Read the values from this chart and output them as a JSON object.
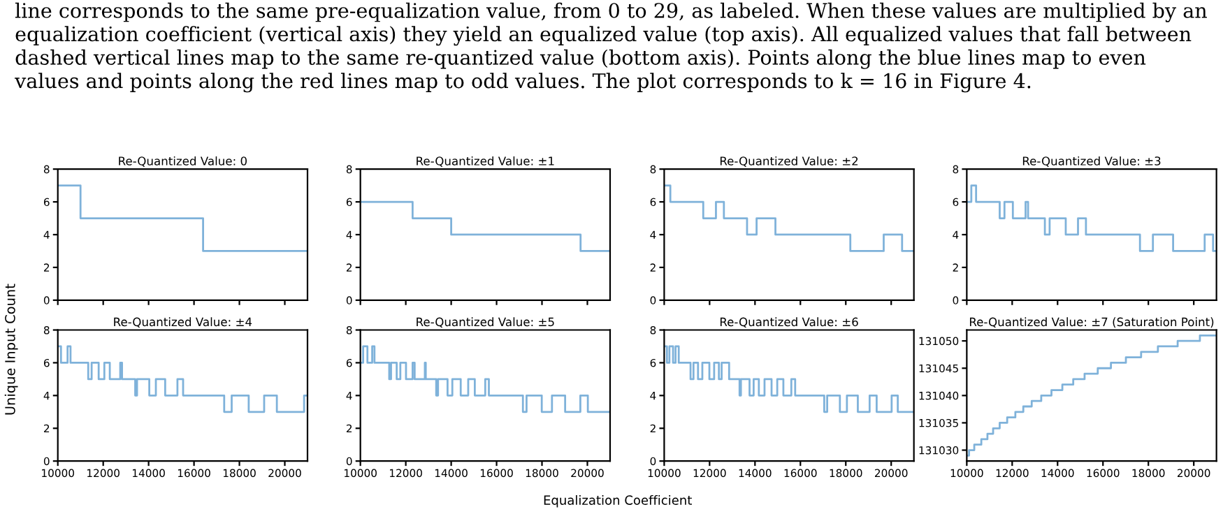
{
  "chart_data": [
    {
      "type": "step",
      "title": "Re-Quantized Value: 0",
      "annotations": [
        "line corresponds to the same pre-equalization value, from 0 to 29, as labeled. When these values are multiplied by an\nequalization coefficient (vertical axis) they yield an equalized value (top axis). All equalized values that fall between\ndashed vertical lines map to the same re-quantized value (bottom axis). Points along the blue lines map to even\nvalues and points along the red lines map to odd values. The plot corresponds to k = 16 in Figure 4."
      ],
      "xlim": [
        10000,
        21000
      ],
      "xticks": [
        {
          "value": 10000,
          "label": null
        },
        {
          "value": 12000,
          "label": null
        },
        {
          "value": 14000,
          "label": null
        },
        {
          "value": 16000,
          "label": null
        },
        {
          "value": 18000,
          "label": null
        },
        {
          "value": 20000,
          "label": null
        }
      ],
      "ylim": [
        0,
        8
      ],
      "yticks": [
        0,
        2,
        4,
        6,
        8
      ],
      "tick_labels": "y",
      "series": [
        {
          "color": "#7fb2da",
          "x": [
            10000,
            11000,
            16400,
            21000
          ],
          "values": [
            7,
            5,
            3,
            3
          ]
        }
      ]
    },
    {
      "type": "step",
      "title": "Re-Quantized Value: ±1",
      "xlim": [
        10000,
        21000
      ],
      "xticks": [
        {
          "value": 10000,
          "label": null
        },
        {
          "value": 12000,
          "label": null
        },
        {
          "value": 14000,
          "label": null
        },
        {
          "value": 16000,
          "label": null
        },
        {
          "value": 18000,
          "label": null
        },
        {
          "value": 20000,
          "label": null
        }
      ],
      "ylim": [
        0,
        8
      ],
      "yticks": [
        0,
        2,
        4,
        6,
        8
      ],
      "tick_labels": "y",
      "series": [
        {
          "color": "#7fb2da",
          "x": [
            10000,
            12300,
            14000,
            19700,
            21000
          ],
          "values": [
            6,
            5,
            4,
            3,
            3
          ]
        }
      ]
    },
    {
      "type": "step",
      "title": "Re-Quantized Value: ±2",
      "xlim": [
        10000,
        21000
      ],
      "xticks": [
        {
          "value": 10000,
          "label": null
        },
        {
          "value": 12000,
          "label": null
        },
        {
          "value": 14000,
          "label": null
        },
        {
          "value": 16000,
          "label": null
        },
        {
          "value": 18000,
          "label": null
        },
        {
          "value": 20000,
          "label": null
        }
      ],
      "ylim": [
        0,
        8
      ],
      "yticks": [
        0,
        2,
        4,
        6,
        8
      ],
      "tick_labels": "y",
      "series": [
        {
          "color": "#7fb2da",
          "x": [
            10000,
            10270,
            11720,
            12280,
            12630,
            13650,
            14070,
            14900,
            18200,
            19670,
            20480,
            21000
          ],
          "values": [
            7,
            6,
            5,
            6,
            5,
            4,
            5,
            4,
            3,
            4,
            3,
            3
          ]
        }
      ]
    },
    {
      "type": "step",
      "title": "Re-Quantized Value: ±3",
      "xlim": [
        10000,
        21000
      ],
      "xticks": [
        {
          "value": 10000,
          "label": null
        },
        {
          "value": 12000,
          "label": null
        },
        {
          "value": 14000,
          "label": null
        },
        {
          "value": 16000,
          "label": null
        },
        {
          "value": 18000,
          "label": null
        },
        {
          "value": 20000,
          "label": null
        }
      ],
      "ylim": [
        0,
        8
      ],
      "yticks": [
        0,
        2,
        4,
        6,
        8
      ],
      "tick_labels": "y",
      "series": [
        {
          "color": "#7fb2da",
          "x": [
            10000,
            10200,
            10410,
            11450,
            11660,
            12030,
            12590,
            12700,
            13440,
            13650,
            14360,
            14900,
            15250,
            17630,
            18200,
            19090,
            20480,
            20850,
            21000
          ],
          "values": [
            6,
            7,
            6,
            5,
            6,
            5,
            6,
            5,
            4,
            5,
            4,
            5,
            4,
            3,
            4,
            3,
            4,
            3,
            3
          ]
        }
      ]
    },
    {
      "type": "step",
      "title": "Re-Quantized Value: ±4",
      "ylabel": "Unique Input Count",
      "xlim": [
        10000,
        21000
      ],
      "xticks": [
        10000,
        12000,
        14000,
        16000,
        18000,
        20000
      ],
      "ylim": [
        0,
        8
      ],
      "yticks": [
        0,
        2,
        4,
        6,
        8
      ],
      "series": [
        {
          "color": "#7fb2da",
          "x": [
            10000,
            10140,
            10430,
            10560,
            11340,
            11490,
            11800,
            12050,
            12290,
            12750,
            12830,
            13410,
            13490,
            14030,
            14320,
            14730,
            15270,
            15520,
            17330,
            17660,
            18410,
            19090,
            19650,
            20850,
            21000
          ],
          "values": [
            7,
            6,
            7,
            6,
            5,
            6,
            5,
            6,
            5,
            6,
            5,
            4,
            5,
            4,
            5,
            4,
            5,
            4,
            3,
            4,
            3,
            4,
            3,
            4,
            4
          ]
        }
      ]
    },
    {
      "type": "step",
      "title": "Re-Quantized Value: ±5",
      "xlabel": "Equalization Coefficient",
      "xlim": [
        10000,
        21000
      ],
      "xticks": [
        10000,
        12000,
        14000,
        16000,
        18000,
        20000
      ],
      "ylim": [
        0,
        8
      ],
      "yticks": [
        0,
        2,
        4,
        6,
        8
      ],
      "series": [
        {
          "color": "#7fb2da",
          "x": [
            10000,
            10120,
            10310,
            10520,
            10620,
            11270,
            11350,
            11600,
            11760,
            12010,
            12300,
            12390,
            12840,
            12880,
            13340,
            13420,
            13840,
            14050,
            14420,
            14750,
            15040,
            15500,
            15660,
            17160,
            17320,
            17990,
            18440,
            19020,
            19690,
            20020,
            21000
          ],
          "values": [
            6,
            7,
            6,
            7,
            6,
            5,
            6,
            5,
            6,
            5,
            6,
            5,
            6,
            5,
            4,
            5,
            4,
            5,
            4,
            5,
            4,
            5,
            4,
            3,
            4,
            3,
            4,
            3,
            4,
            3,
            3
          ]
        }
      ]
    },
    {
      "type": "step",
      "title": "Re-Quantized Value: ±6",
      "xlim": [
        10000,
        21000
      ],
      "xticks": [
        10000,
        12000,
        14000,
        16000,
        18000,
        20000
      ],
      "ylim": [
        0,
        8
      ],
      "yticks": [
        0,
        2,
        4,
        6,
        8
      ],
      "series": [
        {
          "color": "#7fb2da",
          "x": [
            10000,
            10120,
            10230,
            10390,
            10500,
            10640,
            11160,
            11290,
            11490,
            11680,
            11990,
            12200,
            12410,
            12530,
            12860,
            13320,
            13380,
            13760,
            13940,
            14170,
            14420,
            14730,
            14980,
            15250,
            15600,
            15770,
            17050,
            17180,
            17740,
            18050,
            18530,
            19050,
            19360,
            20020,
            20290,
            21000
          ],
          "values": [
            7,
            6,
            7,
            6,
            7,
            6,
            5,
            6,
            5,
            6,
            5,
            6,
            5,
            6,
            5,
            4,
            5,
            4,
            5,
            4,
            5,
            4,
            5,
            4,
            5,
            4,
            3,
            4,
            3,
            4,
            3,
            4,
            3,
            4,
            3,
            3
          ]
        }
      ]
    },
    {
      "type": "step",
      "title": "Re-Quantized Value: ±7 (Saturation Point)",
      "xlim": [
        10000,
        21000
      ],
      "xticks": [
        10000,
        12000,
        14000,
        16000,
        18000,
        20000
      ],
      "ylim": [
        131028,
        131052
      ],
      "yticks": [
        131030,
        131035,
        131040,
        131045,
        131050
      ],
      "series": [
        {
          "color": "#7fb2da",
          "x": [
            10000,
            10100,
            10330,
            10640,
            10910,
            11160,
            11450,
            11780,
            12140,
            12490,
            12860,
            13280,
            13730,
            14210,
            14690,
            15190,
            15770,
            16350,
            17010,
            17680,
            18420,
            19290,
            20270,
            21000
          ],
          "values": [
            131029,
            131030,
            131031,
            131032,
            131033,
            131034,
            131035,
            131036,
            131037,
            131038,
            131039,
            131040,
            131041,
            131042,
            131043,
            131044,
            131045,
            131046,
            131047,
            131048,
            131049,
            131050,
            131051,
            131051
          ]
        }
      ]
    }
  ]
}
